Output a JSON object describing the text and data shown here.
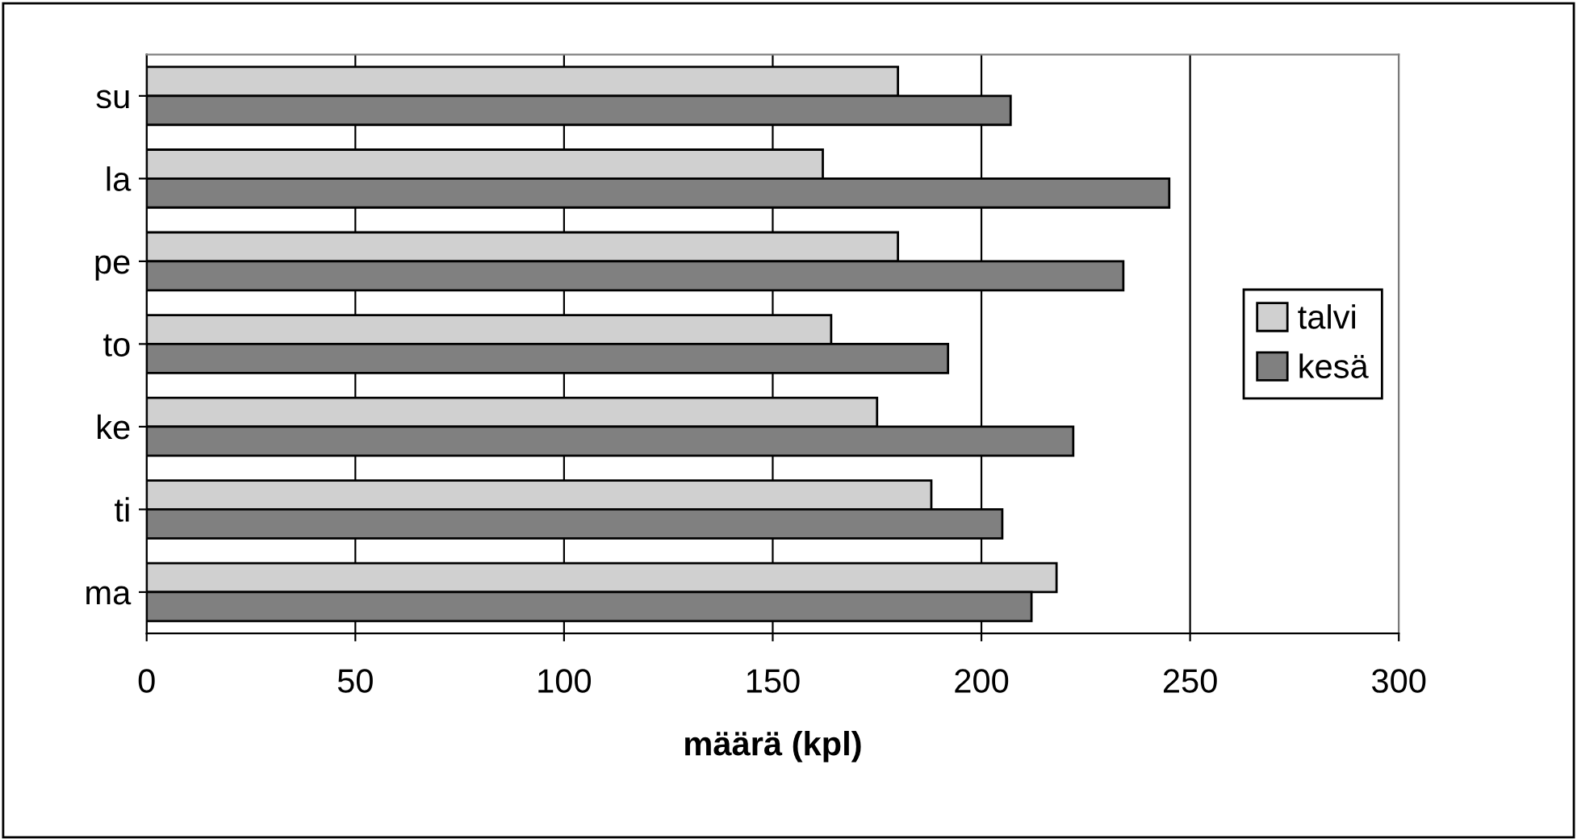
{
  "chart_data": {
    "type": "bar",
    "orientation": "horizontal",
    "xlabel": "määrä (kpl)",
    "categories": [
      "su",
      "la",
      "pe",
      "to",
      "ke",
      "ti",
      "ma"
    ],
    "series": [
      {
        "name": "talvi",
        "color": "#d0d0d0",
        "values": [
          180,
          162,
          180,
          164,
          175,
          188,
          218
        ]
      },
      {
        "name": "kesä",
        "color": "#808080",
        "values": [
          207,
          245,
          234,
          192,
          222,
          205,
          212
        ]
      }
    ],
    "xlim": [
      0,
      300
    ],
    "xticks": [
      0,
      50,
      100,
      150,
      200,
      250,
      300
    ],
    "grid": "x",
    "legend": "right"
  }
}
